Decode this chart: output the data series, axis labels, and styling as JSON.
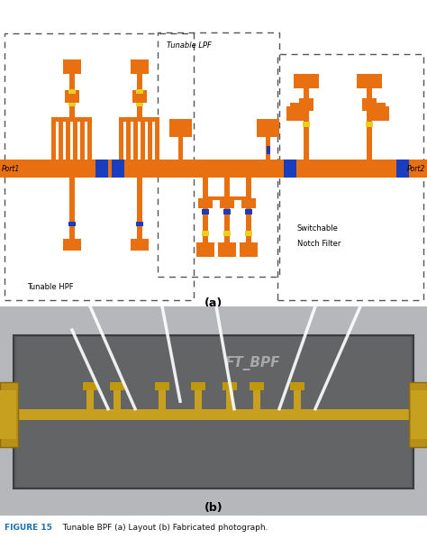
{
  "fig_width": 4.74,
  "fig_height": 6.18,
  "dpi": 100,
  "bg_color": "#ffffff",
  "orange": "#E87010",
  "blue": "#1A3DBF",
  "yellow_small": "#E8D020",
  "caption_blue": "#1a6faf",
  "caption_black": "#111111",
  "dashed_color": "#555555",
  "label_a": "(a)",
  "label_b": "(b)",
  "caption_label": "FIGURE 15",
  "caption_text": "  Tunable BPF (a) Layout (b) Fabricated photograph."
}
